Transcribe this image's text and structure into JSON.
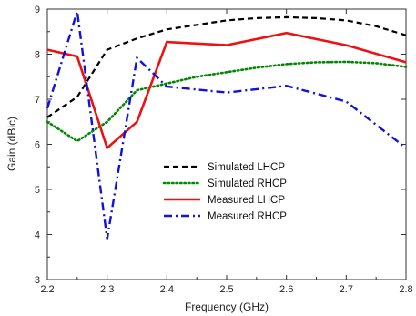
{
  "chart_data": {
    "type": "line",
    "xlabel": "Frequency (GHz)",
    "ylabel": "Gain (dBic)",
    "xlim": [
      2.2,
      2.8
    ],
    "ylim": [
      3,
      9
    ],
    "xticks": [
      2.2,
      2.3,
      2.4,
      2.5,
      2.6,
      2.7,
      2.8
    ],
    "yticks": [
      3,
      4,
      5,
      6,
      7,
      8,
      9
    ],
    "grid": false,
    "legend_position": "lower-center",
    "series": [
      {
        "name": "Simulated LHCP",
        "color": "#000000",
        "dash": "dashed",
        "x": [
          2.2,
          2.25,
          2.3,
          2.35,
          2.4,
          2.45,
          2.5,
          2.55,
          2.6,
          2.65,
          2.7,
          2.75,
          2.8
        ],
        "y": [
          6.6,
          7.05,
          8.1,
          8.35,
          8.55,
          8.65,
          8.75,
          8.8,
          8.82,
          8.8,
          8.75,
          8.62,
          8.42
        ]
      },
      {
        "name": "Simulated RHCP",
        "color": "#008800",
        "dash": "dotted",
        "x": [
          2.2,
          2.25,
          2.3,
          2.35,
          2.4,
          2.45,
          2.5,
          2.55,
          2.6,
          2.65,
          2.7,
          2.75,
          2.8
        ],
        "y": [
          6.5,
          6.07,
          6.5,
          7.2,
          7.35,
          7.5,
          7.6,
          7.7,
          7.78,
          7.82,
          7.83,
          7.8,
          7.72
        ]
      },
      {
        "name": "Measured LHCP",
        "color": "#ee1111",
        "dash": "solid",
        "x": [
          2.2,
          2.25,
          2.3,
          2.35,
          2.4,
          2.5,
          2.6,
          2.7,
          2.8
        ],
        "y": [
          8.1,
          7.95,
          5.92,
          6.5,
          8.27,
          8.2,
          8.47,
          8.2,
          7.82
        ]
      },
      {
        "name": "Measured RHCP",
        "color": "#1111dd",
        "dash": "dashdot",
        "x": [
          2.2,
          2.25,
          2.3,
          2.35,
          2.4,
          2.5,
          2.6,
          2.7,
          2.8
        ],
        "y": [
          6.8,
          8.95,
          3.9,
          7.92,
          7.28,
          7.15,
          7.3,
          6.95,
          5.92
        ]
      }
    ]
  }
}
